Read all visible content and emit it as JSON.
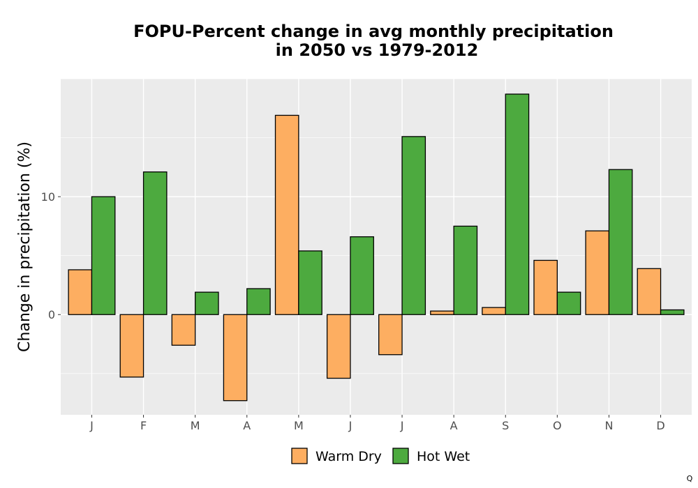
{
  "chart_data": {
    "type": "bar",
    "title_lines": [
      "FOPU-Percent change in avg monthly precipitation",
      "in 2050 vs 1979-2012"
    ],
    "xlabel": "",
    "ylabel": "Change in precipitation (%)",
    "categories": [
      "J",
      "F",
      "M",
      "A",
      "M",
      "J",
      "J",
      "A",
      "S",
      "O",
      "N",
      "D"
    ],
    "series": [
      {
        "name": "Warm Dry",
        "color": "#FDAE61",
        "values": [
          3.8,
          -5.3,
          -2.6,
          -7.3,
          16.9,
          -5.4,
          -3.4,
          0.3,
          0.6,
          4.6,
          7.1,
          3.9
        ]
      },
      {
        "name": "Hot Wet",
        "color": "#4DAA3F",
        "values": [
          10.0,
          12.1,
          1.9,
          2.2,
          5.4,
          6.6,
          15.1,
          7.5,
          18.7,
          1.9,
          12.3,
          0.4
        ]
      }
    ],
    "ylim": [
      -8.5,
      20.0
    ],
    "yticks": [
      0,
      10
    ],
    "ytick_labels": [
      "0",
      "10"
    ],
    "grid": true,
    "legend_position": "bottom",
    "panel_background": "#EBEBEB",
    "grid_color": "#FFFFFF"
  },
  "corner_mark": "Q"
}
